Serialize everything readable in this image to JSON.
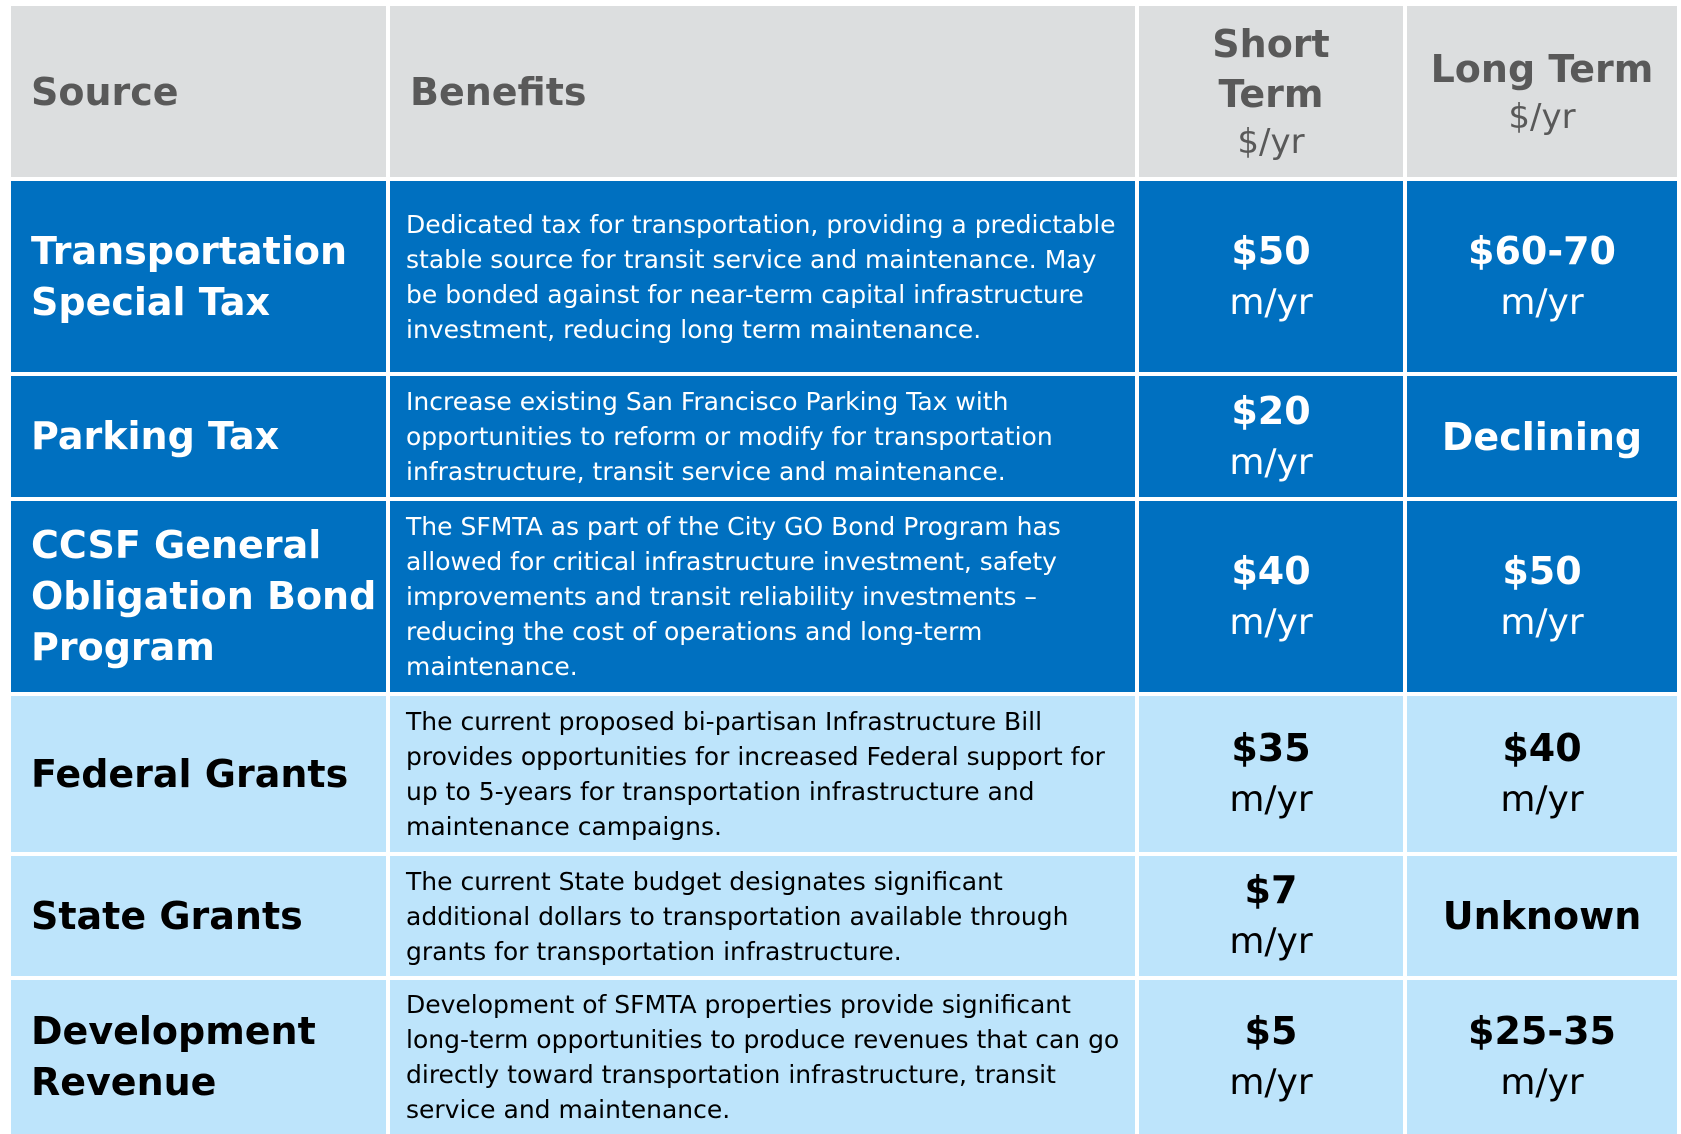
{
  "header": {
    "source": "Source",
    "benefits": "Benefits",
    "short_term": {
      "title": "Short Term",
      "unit": "$/yr"
    },
    "long_term": {
      "title": "Long Term",
      "unit": "$/yr"
    }
  },
  "rows": [
    {
      "source": "Transportation Special Tax",
      "benefits": "Dedicated tax for transportation, providing a predictable stable source for transit service and maintenance. May be bonded against for near-term capital infrastructure investment, reducing long term maintenance.",
      "short_term": {
        "amount": "$50",
        "unit": "m/yr"
      },
      "long_term": {
        "amount": "$60-70",
        "unit": "m/yr"
      },
      "style": "dark"
    },
    {
      "source": "Parking Tax",
      "benefits": "Increase existing San Francisco Parking Tax with opportunities to reform or modify for transportation infrastructure, transit service and maintenance.",
      "short_term": {
        "amount": "$20",
        "unit": "m/yr"
      },
      "long_term": {
        "amount": "Declining"
      },
      "style": "dark"
    },
    {
      "source": "CCSF General Obligation Bond Program",
      "benefits": "The SFMTA as part of the City GO Bond Program has allowed for critical infrastructure investment, safety improvements and transit reliability investments – reducing the cost of operations and long-term maintenance.",
      "short_term": {
        "amount": "$40",
        "unit": "m/yr"
      },
      "long_term": {
        "amount": "$50",
        "unit": "m/yr"
      },
      "style": "dark"
    },
    {
      "source": "Federal Grants",
      "benefits": "The current proposed bi-partisan Infrastructure Bill provides opportunities for increased Federal support for up to 5-years for transportation infrastructure and maintenance campaigns.",
      "short_term": {
        "amount": "$35",
        "unit": "m/yr"
      },
      "long_term": {
        "amount": "$40",
        "unit": "m/yr"
      },
      "style": "light"
    },
    {
      "source": "State Grants",
      "benefits": "The current State budget designates significant additional dollars to transportation available through grants for transportation infrastructure.",
      "short_term": {
        "amount": "$7",
        "unit": "m/yr"
      },
      "long_term": {
        "amount": "Unknown"
      },
      "style": "light"
    },
    {
      "source": "Development Revenue",
      "benefits": "Development of SFMTA properties provide significant long-term opportunities to produce revenues that can go directly toward transportation infrastructure, transit service and maintenance.",
      "short_term": {
        "amount": "$5",
        "unit": "m/yr"
      },
      "long_term": {
        "amount": "$25-35",
        "unit": "m/yr"
      },
      "style": "light"
    }
  ]
}
